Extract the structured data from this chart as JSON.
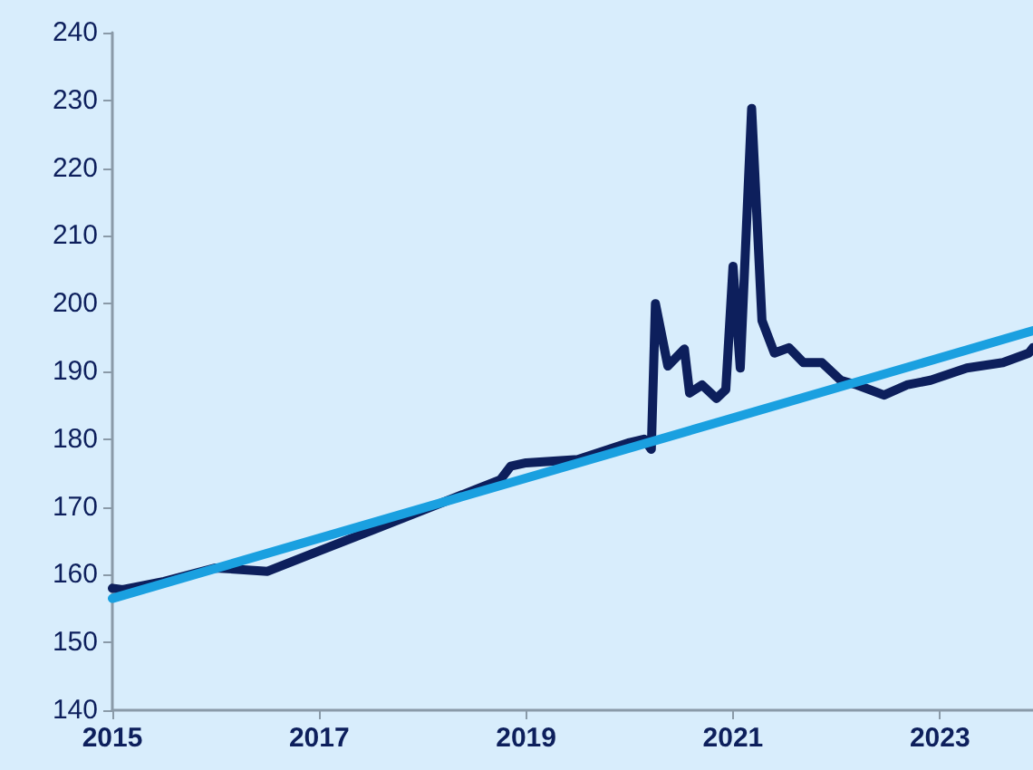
{
  "chart_data": {
    "type": "line",
    "xlim": [
      2015,
      2023.9
    ],
    "ylim": [
      140,
      240
    ],
    "xticks": [
      2015,
      2017,
      2019,
      2021,
      2023
    ],
    "yticks": [
      140,
      150,
      160,
      170,
      180,
      190,
      200,
      210,
      220,
      230,
      240
    ],
    "grid": false,
    "marker": "none",
    "line_style": "solid",
    "series": [
      {
        "color": "#0d1f5c",
        "x": [
          2015,
          2015.1,
          2015.5,
          2016,
          2016.5,
          2017,
          2017.5,
          2018,
          2018.5,
          2018.75,
          2018.85,
          2019,
          2019.5,
          2020,
          2020.14,
          2020.21,
          2020.25,
          2020.37,
          2020.53,
          2020.58,
          2020.7,
          2020.84,
          2020.93,
          2021,
          2021.07,
          2021.18,
          2021.28,
          2021.4,
          2021.54,
          2021.68,
          2021.86,
          2022.04,
          2022.2,
          2022.46,
          2022.68,
          2022.91,
          2023.26,
          2023.61,
          2023.86,
          2023.9
        ],
        "values": [
          158,
          157.8,
          159,
          161,
          160.5,
          163.5,
          166.5,
          169.5,
          172.5,
          174,
          176,
          176.5,
          177,
          179.5,
          180,
          178.5,
          200,
          190.8,
          193.3,
          186.8,
          188,
          186,
          187.3,
          205.5,
          190.5,
          228.8,
          197.5,
          192.7,
          193.5,
          191.3,
          191.3,
          188.7,
          188,
          186.5,
          188,
          188.7,
          190.5,
          191.3,
          192.7,
          193.5
        ]
      },
      {
        "type": "line",
        "color": "#1aa0e0",
        "x": [
          2015,
          2023.9
        ],
        "values": [
          156.5,
          196
        ]
      }
    ]
  }
}
